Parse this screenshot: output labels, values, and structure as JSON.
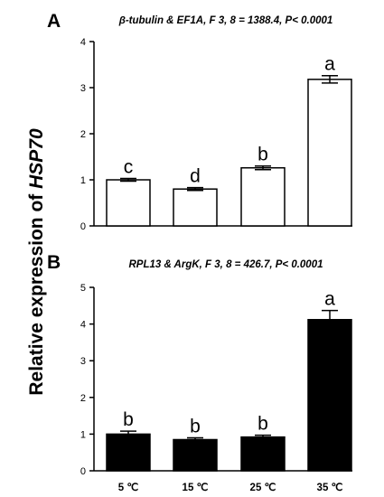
{
  "figure": {
    "ylabel_prefix": "Relative expression of ",
    "ylabel_gene": "HSP70"
  },
  "chart_data": [
    {
      "type": "bar",
      "panel": "A",
      "title": "β-tubulin & EF1A, F 3, 8 = 1388.4, P< 0.0001",
      "categories": [
        "5 ℃",
        "15 ℃",
        "25 ℃",
        "35 ℃"
      ],
      "values": [
        1.0,
        0.8,
        1.26,
        3.18
      ],
      "errors": [
        0.03,
        0.03,
        0.04,
        0.08
      ],
      "significance": [
        "c",
        "d",
        "b",
        "a"
      ],
      "ylim": [
        0,
        4
      ],
      "yticks": [
        0,
        1,
        2,
        3,
        4
      ],
      "bar_color": "#ffffff",
      "show_category_labels": false,
      "grid": false
    },
    {
      "type": "bar",
      "panel": "B",
      "title": "RPL13 & ArgK, F 3, 8 = 426.7, P< 0.0001",
      "categories": [
        "5 ℃",
        "15 ℃",
        "25 ℃",
        "35 ℃"
      ],
      "values": [
        1.0,
        0.85,
        0.92,
        4.12
      ],
      "errors": [
        0.08,
        0.05,
        0.05,
        0.25
      ],
      "significance": [
        "b",
        "b",
        "b",
        "a"
      ],
      "ylim": [
        0,
        5
      ],
      "yticks": [
        0,
        1,
        2,
        3,
        4,
        5
      ],
      "bar_color": "#000000",
      "show_category_labels": true,
      "grid": false
    }
  ]
}
